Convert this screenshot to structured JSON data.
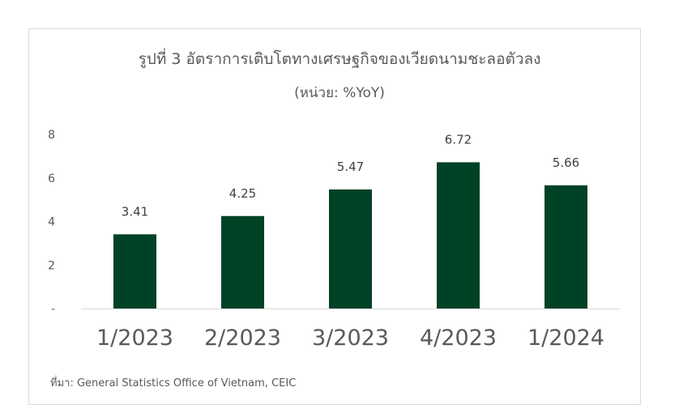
{
  "chart_data": {
    "type": "bar",
    "title": "รูปที่ 3 อัตราการเติบโตทางเศรษฐกิจของเวียดนามชะลอตัวลง",
    "subtitle": "(หน่วย: %YoY)",
    "categories": [
      "1/2023",
      "2/2023",
      "3/2023",
      "4/2023",
      "1/2024"
    ],
    "values": [
      3.41,
      4.25,
      5.47,
      6.72,
      5.66
    ],
    "data_labels": [
      "3.41",
      "4.25",
      "5.47",
      "6.72",
      "5.66"
    ],
    "ylim": [
      0,
      8
    ],
    "y_ticks": [
      {
        "value": 0,
        "label": "-"
      },
      {
        "value": 2,
        "label": "2"
      },
      {
        "value": 4,
        "label": "4"
      },
      {
        "value": 6,
        "label": "6"
      },
      {
        "value": 8,
        "label": "8"
      }
    ],
    "xlabel": "",
    "ylabel": "",
    "grid": false,
    "legend": "none",
    "bar_color": "#004225"
  },
  "source_text": "ที่มา: General Statistics Office of Vietnam, CEIC"
}
